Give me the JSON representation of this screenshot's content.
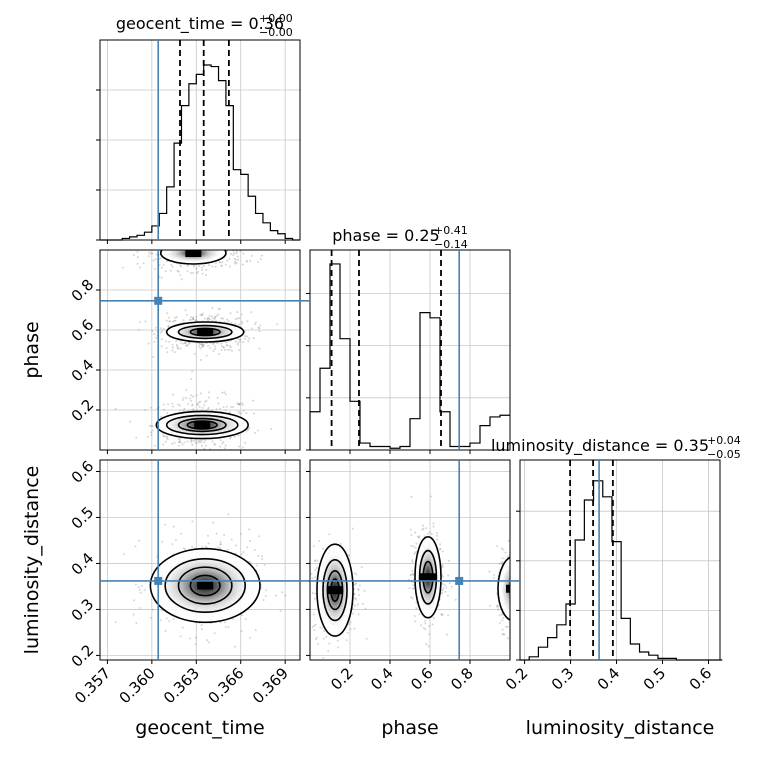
{
  "colors": {
    "truth": "#4682b4",
    "line": "#000000",
    "grid": "#c8c8c8",
    "points": "#888888"
  },
  "chart_data": {
    "type": "corner",
    "parameters": [
      "geocent_time",
      "phase",
      "luminosity_distance"
    ],
    "truths": {
      "geocent_time": 0.36043,
      "phase": 0.746,
      "luminosity_distance": 0.362
    },
    "diagonal": [
      {
        "param": "geocent_time",
        "title_main": "geocent_time = 0.36",
        "title_sup": "+0.00",
        "title_sub": "−0.00",
        "range": [
          0.3565,
          0.37
        ],
        "quantiles": [
          0.3619,
          0.3635,
          0.3652
        ],
        "bin_width": 0.0005,
        "bin_starts": [
          0.3565,
          0.357,
          0.3575,
          0.358,
          0.3585,
          0.359,
          0.3595,
          0.36,
          0.3605,
          0.361,
          0.3615,
          0.362,
          0.3625,
          0.363,
          0.3635,
          0.364,
          0.3645,
          0.365,
          0.3655,
          0.366,
          0.3665,
          0.367,
          0.3675,
          0.368,
          0.3685,
          0.369,
          0.3695
        ],
        "counts": [
          0,
          0,
          0,
          1,
          2,
          3,
          5,
          9,
          17,
          34,
          62,
          86,
          100,
          106,
          112,
          111,
          102,
          86,
          45,
          42,
          28,
          17,
          11,
          6,
          4,
          1,
          0
        ],
        "ymax": 128,
        "yticks": [
          0,
          32,
          64,
          96
        ]
      },
      {
        "param": "phase",
        "title_main": "phase = 0.25",
        "title_sup": "+0.41",
        "title_sub": "−0.14",
        "range": [
          0.0,
          1.0
        ],
        "quantiles": [
          0.108,
          0.245,
          0.655
        ],
        "bin_width": 0.05,
        "bin_starts": [
          0.0,
          0.05,
          0.1,
          0.15,
          0.2,
          0.25,
          0.3,
          0.35,
          0.4,
          0.45,
          0.5,
          0.55,
          0.6,
          0.65,
          0.7,
          0.75,
          0.8,
          0.85,
          0.9,
          0.95
        ],
        "counts": [
          22,
          47,
          107,
          64,
          28,
          4,
          2,
          2,
          1,
          2,
          18,
          79,
          76,
          22,
          2,
          2,
          4,
          14,
          19,
          20
        ],
        "ymax": 115,
        "yticks": [
          0,
          30,
          60,
          90
        ]
      },
      {
        "param": "luminosity_distance",
        "title_main": "luminosity_distance = 0.35",
        "title_sup": "+0.04",
        "title_sub": "−0.05",
        "range": [
          0.19,
          0.625
        ],
        "quantiles": [
          0.299,
          0.349,
          0.392
        ],
        "bin_width": 0.02,
        "bin_starts": [
          0.19,
          0.21,
          0.23,
          0.25,
          0.27,
          0.29,
          0.31,
          0.33,
          0.35,
          0.37,
          0.39,
          0.41,
          0.43,
          0.45,
          0.47,
          0.49,
          0.51,
          0.53,
          0.55,
          0.57,
          0.59,
          0.61
        ],
        "counts": [
          0,
          2,
          8,
          14,
          22,
          35,
          75,
          100,
          112,
          102,
          74,
          26,
          10,
          5,
          3,
          1,
          1,
          0,
          0,
          0,
          0,
          0
        ],
        "ymax": 125,
        "yticks": [
          0,
          31,
          62,
          93
        ]
      }
    ],
    "panels": [
      {
        "x": "geocent_time",
        "y": "phase",
        "xlim": [
          0.3565,
          0.37
        ],
        "ylim": [
          0.0,
          1.0
        ],
        "modes": [
          {
            "cx": 0.3634,
            "cy": 0.125,
            "sx": 0.0012,
            "sy": 0.05,
            "levels": [
              [
                0.0031,
                0.068
              ],
              [
                0.0024,
                0.048
              ],
              [
                0.0016,
                0.032
              ],
              [
                0.001,
                0.02
              ]
            ]
          },
          {
            "cx": 0.3636,
            "cy": 0.59,
            "sx": 0.0011,
            "sy": 0.035,
            "levels": [
              [
                0.0026,
                0.05
              ],
              [
                0.0018,
                0.032
              ],
              [
                0.001,
                0.018
              ]
            ]
          },
          {
            "cx": 0.3628,
            "cy": 0.985,
            "sx": 0.0012,
            "sy": 0.03,
            "levels": [
              [
                0.0022,
                0.055
              ]
            ]
          }
        ]
      },
      {
        "x": "geocent_time",
        "y": "luminosity_distance",
        "xlim": [
          0.3565,
          0.37
        ],
        "ylim": [
          0.19,
          0.625
        ],
        "modes": [
          {
            "cx": 0.3636,
            "cy": 0.352,
            "sx": 0.0013,
            "sy": 0.038,
            "levels": [
              [
                0.0037,
                0.08
              ],
              [
                0.0027,
                0.058
              ],
              [
                0.0018,
                0.04
              ],
              [
                0.001,
                0.022
              ]
            ]
          }
        ]
      },
      {
        "x": "phase",
        "y": "luminosity_distance",
        "xlim": [
          0.0,
          1.0
        ],
        "ylim": [
          0.19,
          0.625
        ],
        "modes": [
          {
            "cx": 0.125,
            "cy": 0.342,
            "sx": 0.04,
            "sy": 0.035,
            "levels": [
              [
                0.09,
                0.1
              ],
              [
                0.06,
                0.066
              ],
              [
                0.038,
                0.042
              ],
              [
                0.02,
                0.024
              ]
            ]
          },
          {
            "cx": 0.59,
            "cy": 0.37,
            "sx": 0.03,
            "sy": 0.035,
            "levels": [
              [
                0.065,
                0.088
              ],
              [
                0.042,
                0.058
              ],
              [
                0.024,
                0.034
              ]
            ]
          },
          {
            "cx": 1.02,
            "cy": 0.345,
            "sx": 0.03,
            "sy": 0.03,
            "levels": [
              [
                0.08,
                0.07
              ]
            ]
          }
        ]
      }
    ],
    "axes": {
      "x_labels": [
        "geocent_time",
        "phase",
        "luminosity_distance"
      ],
      "y_labels": [
        "phase",
        "luminosity_distance"
      ],
      "x_ticks": [
        {
          "param": "geocent_time",
          "values": [
            0.357,
            0.36,
            0.363,
            0.366,
            0.369
          ],
          "labels": [
            "0.357",
            "0.360",
            "0.363",
            "0.366",
            "0.369"
          ]
        },
        {
          "param": "phase",
          "values": [
            0.2,
            0.4,
            0.6,
            0.8
          ],
          "labels": [
            "0.2",
            "0.4",
            "0.6",
            "0.8"
          ]
        },
        {
          "param": "luminosity_distance",
          "values": [
            0.2,
            0.3,
            0.4,
            0.5,
            0.6
          ],
          "labels": [
            "0.2",
            "0.3",
            "0.4",
            "0.5",
            "0.6"
          ]
        }
      ],
      "y_ticks": [
        {
          "param": "phase",
          "values": [
            0.2,
            0.4,
            0.6,
            0.8
          ],
          "labels": [
            "0.2",
            "0.4",
            "0.6",
            "0.8"
          ]
        },
        {
          "param": "luminosity_distance",
          "values": [
            0.2,
            0.3,
            0.4,
            0.5,
            0.6
          ],
          "labels": [
            "0.2",
            "0.3",
            "0.4",
            "0.5",
            "0.6"
          ]
        }
      ]
    },
    "grid": true
  }
}
